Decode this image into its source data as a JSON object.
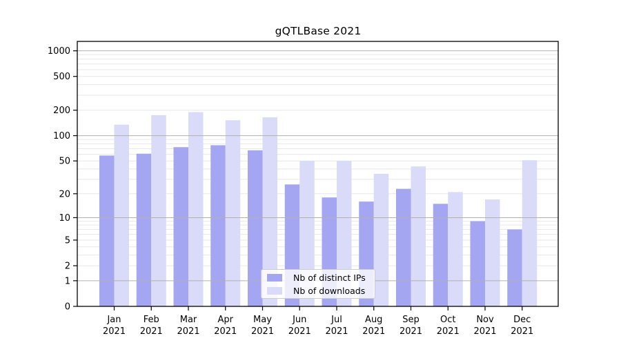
{
  "chart_data": {
    "type": "bar",
    "title": "gQTLBase 2021",
    "categories": [
      "Jan",
      "Feb",
      "Mar",
      "Apr",
      "May",
      "Jun",
      "Jul",
      "Aug",
      "Sep",
      "Oct",
      "Nov",
      "Dec"
    ],
    "year_label": "2021",
    "series": [
      {
        "name": "Nb of distinct IPs",
        "color": "#a5a6f1",
        "values": [
          58,
          61,
          73,
          77,
          67,
          26,
          18,
          16,
          23,
          15,
          9,
          7
        ]
      },
      {
        "name": "Nb of downloads",
        "color": "#dadbf8",
        "values": [
          135,
          175,
          190,
          152,
          165,
          50,
          50,
          35,
          43,
          21,
          17,
          51
        ]
      }
    ],
    "xlabel": "",
    "ylabel": "",
    "yscale": "log1p",
    "yticks": [
      0,
      1,
      2,
      5,
      10,
      20,
      50,
      100,
      200,
      500,
      1000
    ],
    "ylim": [
      0,
      1290
    ],
    "grid": {
      "major_values": [
        1,
        10,
        100,
        1000
      ],
      "minor_values": [
        2,
        3,
        4,
        5,
        6,
        7,
        8,
        9,
        20,
        30,
        40,
        50,
        60,
        70,
        80,
        90,
        200,
        300,
        400,
        500,
        600,
        700,
        800,
        900
      ],
      "major_color": "#b0b0b0",
      "minor_color": "#e7e7e7"
    },
    "legend_position": "lower center",
    "axis_color": "#000000",
    "text_color": "#000000",
    "background": "#ffffff"
  }
}
